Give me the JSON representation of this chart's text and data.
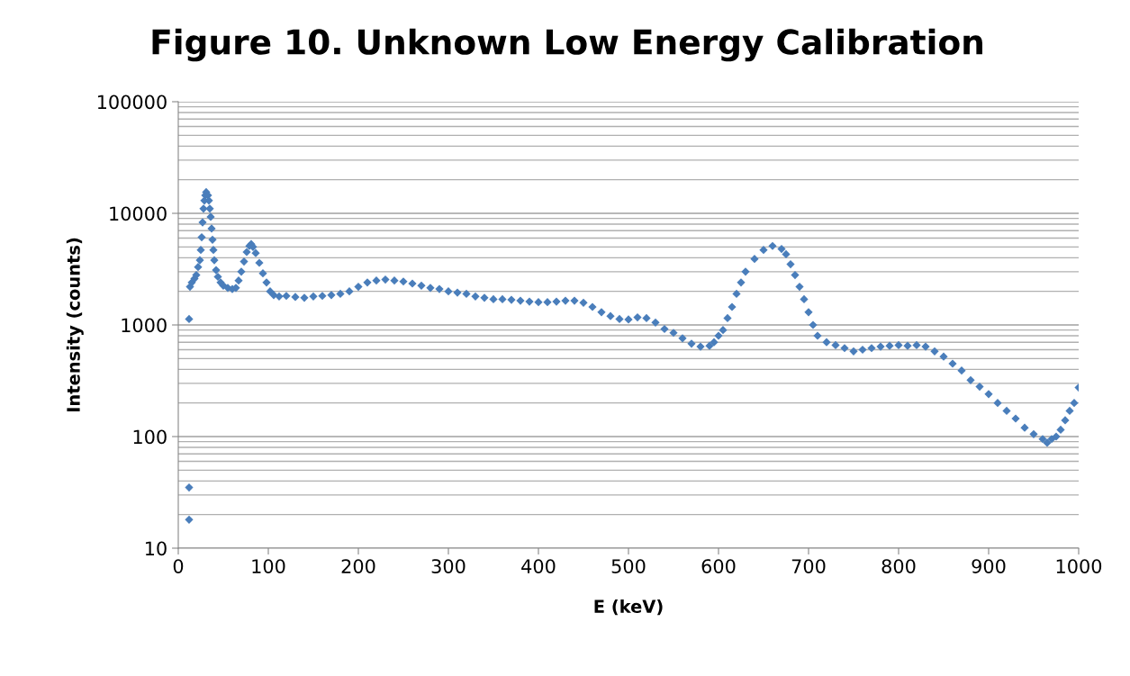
{
  "chart_data": {
    "type": "scatter",
    "title": "Figure 10. Unknown Low Energy Calibration",
    "xlabel": "E (keV)",
    "ylabel": "Intensity (counts)",
    "x": [
      12,
      12,
      12,
      13,
      15,
      18,
      20,
      22,
      24,
      25,
      26,
      27,
      28,
      29,
      30,
      31,
      33,
      34,
      35,
      36,
      37,
      38,
      39,
      40,
      42,
      44,
      47,
      50,
      55,
      60,
      64,
      67,
      70,
      73,
      76,
      79,
      81,
      83,
      86,
      90,
      94,
      98,
      102,
      106,
      112,
      120,
      130,
      140,
      150,
      160,
      170,
      180,
      190,
      200,
      210,
      220,
      230,
      240,
      250,
      260,
      270,
      280,
      290,
      300,
      310,
      320,
      330,
      340,
      350,
      360,
      370,
      380,
      390,
      400,
      410,
      420,
      430,
      440,
      450,
      460,
      470,
      480,
      490,
      500,
      510,
      520,
      530,
      540,
      550,
      560,
      570,
      580,
      590,
      595,
      600,
      605,
      610,
      615,
      620,
      625,
      630,
      640,
      650,
      660,
      670,
      675,
      680,
      685,
      690,
      695,
      700,
      705,
      710,
      720,
      730,
      740,
      750,
      760,
      770,
      780,
      790,
      800,
      810,
      820,
      830,
      840,
      850,
      860,
      870,
      880,
      890,
      900,
      910,
      920,
      930,
      940,
      950,
      960,
      965,
      970,
      975,
      980,
      985,
      990,
      995,
      1000
    ],
    "series": [
      {
        "color": "#4a7ebb",
        "values": [
          18,
          35,
          1130,
          2200,
          2400,
          2600,
          2800,
          3300,
          3800,
          4700,
          6100,
          8300,
          11000,
          13000,
          14500,
          15500,
          14500,
          13000,
          11000,
          9300,
          7300,
          5800,
          4700,
          3800,
          3100,
          2700,
          2400,
          2250,
          2150,
          2100,
          2150,
          2500,
          3000,
          3700,
          4500,
          5100,
          5300,
          5000,
          4400,
          3600,
          2900,
          2400,
          2000,
          1850,
          1800,
          1820,
          1780,
          1750,
          1800,
          1820,
          1850,
          1900,
          2000,
          2200,
          2400,
          2500,
          2550,
          2500,
          2450,
          2350,
          2250,
          2150,
          2100,
          2000,
          1950,
          1900,
          1800,
          1750,
          1700,
          1700,
          1680,
          1650,
          1620,
          1600,
          1600,
          1620,
          1650,
          1650,
          1580,
          1450,
          1300,
          1200,
          1130,
          1120,
          1170,
          1150,
          1050,
          920,
          850,
          760,
          680,
          640,
          650,
          700,
          800,
          900,
          1150,
          1450,
          1900,
          2400,
          3000,
          3900,
          4700,
          5100,
          4800,
          4300,
          3500,
          2800,
          2200,
          1700,
          1300,
          1000,
          800,
          700,
          660,
          620,
          580,
          600,
          620,
          640,
          650,
          660,
          650,
          660,
          640,
          580,
          520,
          450,
          390,
          320,
          280,
          240,
          200,
          170,
          145,
          120,
          105,
          95,
          88,
          95,
          100,
          115,
          140,
          170,
          200,
          275
        ]
      }
    ],
    "log": "y",
    "xlim": [
      0,
      1000
    ],
    "xticks": [
      0,
      100,
      200,
      300,
      400,
      500,
      600,
      700,
      800,
      900,
      1000
    ],
    "ylim": [
      10,
      100000
    ],
    "yticks": [
      10,
      100,
      1000,
      10000,
      100000
    ],
    "grid": "y",
    "marker": "diamond",
    "legend": false
  }
}
